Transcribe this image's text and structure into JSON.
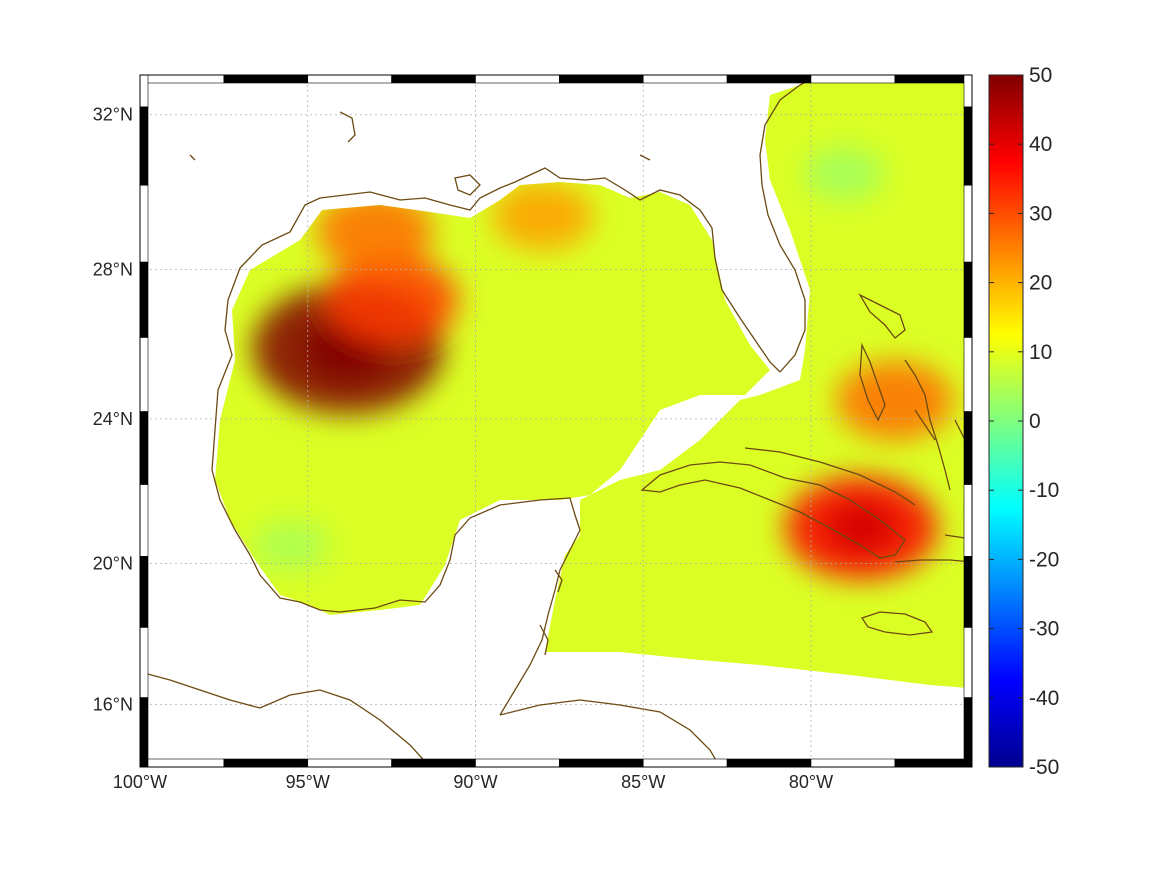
{
  "map": {
    "projection": "mercator",
    "lon_range": [
      -100,
      -75.2
    ],
    "lat_range": [
      14.2,
      33.0
    ],
    "lon_ticks": [
      {
        "value": -100,
        "label": "100°W"
      },
      {
        "value": -95,
        "label": "95°W"
      },
      {
        "value": -90,
        "label": "90°W"
      },
      {
        "value": -85,
        "label": "85°W"
      },
      {
        "value": -80,
        "label": "80°W"
      }
    ],
    "lat_ticks": [
      {
        "value": 16,
        "label": "16°N"
      },
      {
        "value": 20,
        "label": "20°N"
      },
      {
        "value": 24,
        "label": "24°N"
      },
      {
        "value": 28,
        "label": "28°N"
      },
      {
        "value": 32,
        "label": "32°N"
      }
    ],
    "grid": true,
    "coastline_color": "#6b4a12",
    "frame_style": "black-white checkered"
  },
  "colorbar": {
    "colormap": "jet",
    "range": [
      -50,
      50
    ],
    "placement": "right",
    "ticks": [
      {
        "value": 50,
        "label": "50"
      },
      {
        "value": 40,
        "label": "40"
      },
      {
        "value": 30,
        "label": "30"
      },
      {
        "value": 20,
        "label": "20"
      },
      {
        "value": 10,
        "label": "10"
      },
      {
        "value": 0,
        "label": "0"
      },
      {
        "value": -10,
        "label": "-10"
      },
      {
        "value": -20,
        "label": "-20"
      },
      {
        "value": -30,
        "label": "-30"
      },
      {
        "value": -40,
        "label": "-40"
      },
      {
        "value": -50,
        "label": "-50"
      }
    ]
  },
  "field": {
    "background_value": 9,
    "features": [
      {
        "name": "western-gulf-maximum",
        "lon": -93.8,
        "lat": 25.9,
        "value": 50
      },
      {
        "name": "northwestern-gulf-high",
        "lon": -92.5,
        "lat": 27.2,
        "value": 32
      },
      {
        "name": "texas-louisiana-shelf-high",
        "lon": -93.0,
        "lat": 29.0,
        "value": 27
      },
      {
        "name": "cuba-southeast-high",
        "lon": -78.5,
        "lat": 21.0,
        "value": 38
      },
      {
        "name": "bahamas-high",
        "lon": -77.5,
        "lat": 24.5,
        "value": 27
      },
      {
        "name": "mississippi-shelf-high",
        "lon": -88.0,
        "lat": 29.4,
        "value": 22
      },
      {
        "name": "atlantic-coast-low",
        "lon": -79.0,
        "lat": 30.5,
        "value": 3
      },
      {
        "name": "mexico-coast-low",
        "lon": -95.5,
        "lat": 20.5,
        "value": 4
      }
    ]
  }
}
